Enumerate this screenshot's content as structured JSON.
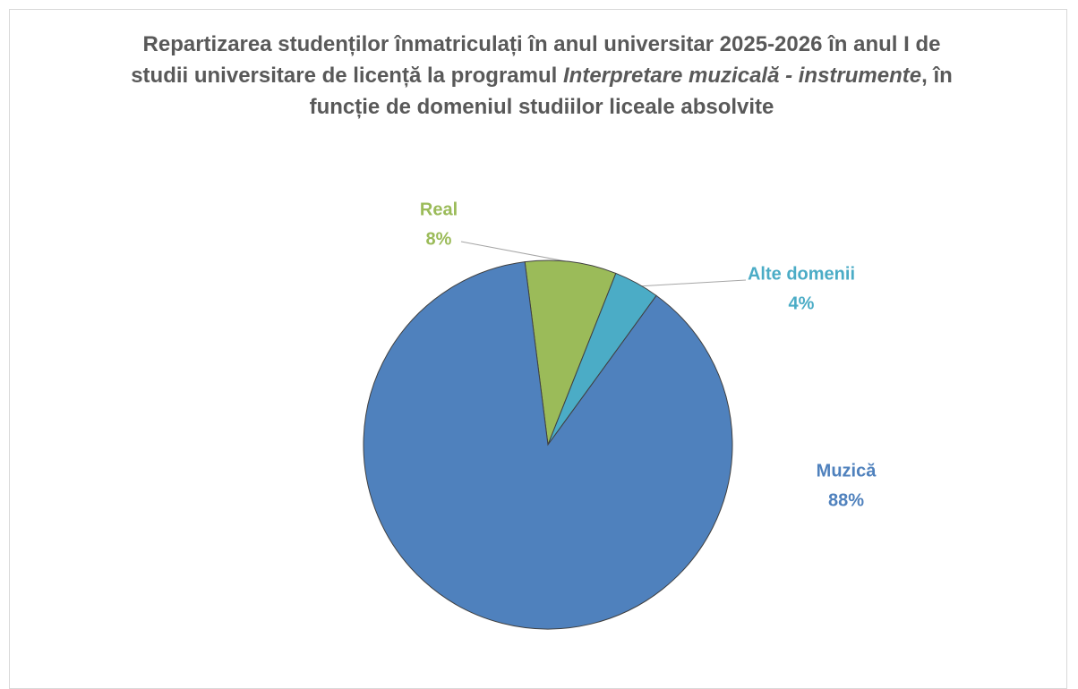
{
  "chart_data": {
    "type": "pie",
    "title": [
      "Repartizarea studenților înmatriculați în anul universitar 2025-2026 în anul I de studii universitare de licență la programul ",
      "Interpretare muzicală - instrumente",
      ", în funcție de domeniul studiilor liceale absolvite"
    ],
    "categories": [
      "Real",
      "Alte domenii",
      "Muzică"
    ],
    "values": [
      8,
      4,
      88
    ],
    "value_labels": [
      "8%",
      "4%",
      "88%"
    ],
    "colors": [
      "#9bbb59",
      "#4bacc6",
      "#4f81bd"
    ]
  }
}
